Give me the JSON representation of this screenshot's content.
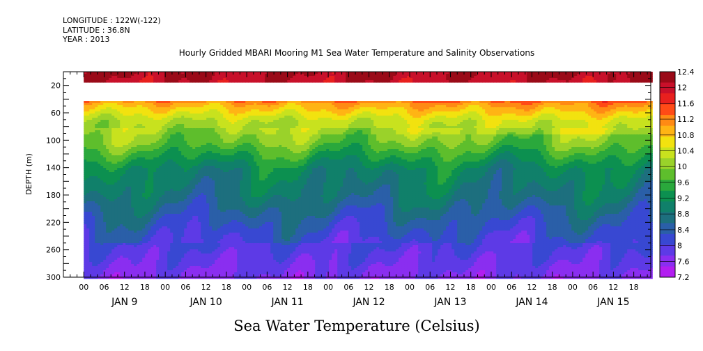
{
  "header": {
    "longitude": "LONGITUDE : 122W(-122)",
    "latitude": "LATITUDE : 36.8N",
    "year": "YEAR : 2013"
  },
  "chart_data": {
    "type": "heatmap",
    "title": "Hourly Gridded MBARI Mooring M1 Sea Water Temperature and Salinity Observations",
    "xlabel": "Sea Water Temperature (Celsius)",
    "ylabel": "DEPTH (m)",
    "y_axis": {
      "range": [
        0,
        300
      ],
      "inverted": true,
      "tick_labels": [
        "20",
        "60",
        "100",
        "140",
        "180",
        "220",
        "260",
        "300"
      ]
    },
    "x_axis": {
      "hour_labels": [
        "00",
        "06",
        "12",
        "18",
        "00",
        "06",
        "12",
        "18",
        "00",
        "06",
        "12",
        "18",
        "00",
        "06",
        "12",
        "18",
        "00",
        "06",
        "12",
        "18",
        "00",
        "06",
        "12",
        "18",
        "00",
        "06",
        "12",
        "18"
      ],
      "day_labels": [
        "JAN  9",
        "JAN 10",
        "JAN 11",
        "JAN 12",
        "JAN 13",
        "JAN 14",
        "JAN 15"
      ],
      "start": "2013-01-08T18:00",
      "end": "2013-01-15T23:00",
      "data_start": "2013-01-09T00:00"
    },
    "colorbar": {
      "levels": [
        "12.4",
        "12",
        "11.6",
        "11.2",
        "10.8",
        "10.4",
        "10",
        "9.6",
        "9.2",
        "8.8",
        "8.4",
        "8",
        "7.6",
        "7.2"
      ],
      "colors": [
        "#9a0a18",
        "#c8102a",
        "#e8201e",
        "#ff4b16",
        "#ff8a14",
        "#ffb414",
        "#f2e20f",
        "#c8e21e",
        "#9ad22a",
        "#5ebe2c",
        "#2aa83c",
        "#0c9050",
        "#10806a",
        "#1d6f7e",
        "#2a5fa8",
        "#3848d2",
        "#5d3ae6",
        "#8a2ef0",
        "#b21ef0"
      ]
    },
    "depth_profile_celsius": [
      {
        "depth_m": 4,
        "value": 12.3
      },
      {
        "depth_m": 33,
        "value": 12.0
      },
      {
        "depth_m": 45,
        "value": 11.0
      },
      {
        "depth_m": 70,
        "value": 10.2
      },
      {
        "depth_m": 100,
        "value": 9.9
      },
      {
        "depth_m": 140,
        "value": 9.0
      },
      {
        "depth_m": 180,
        "value": 8.7
      },
      {
        "depth_m": 220,
        "value": 8.2
      },
      {
        "depth_m": 260,
        "value": 7.8
      },
      {
        "depth_m": 300,
        "value": 7.5
      }
    ],
    "missing_depth_range_m": [
      15,
      40
    ]
  }
}
